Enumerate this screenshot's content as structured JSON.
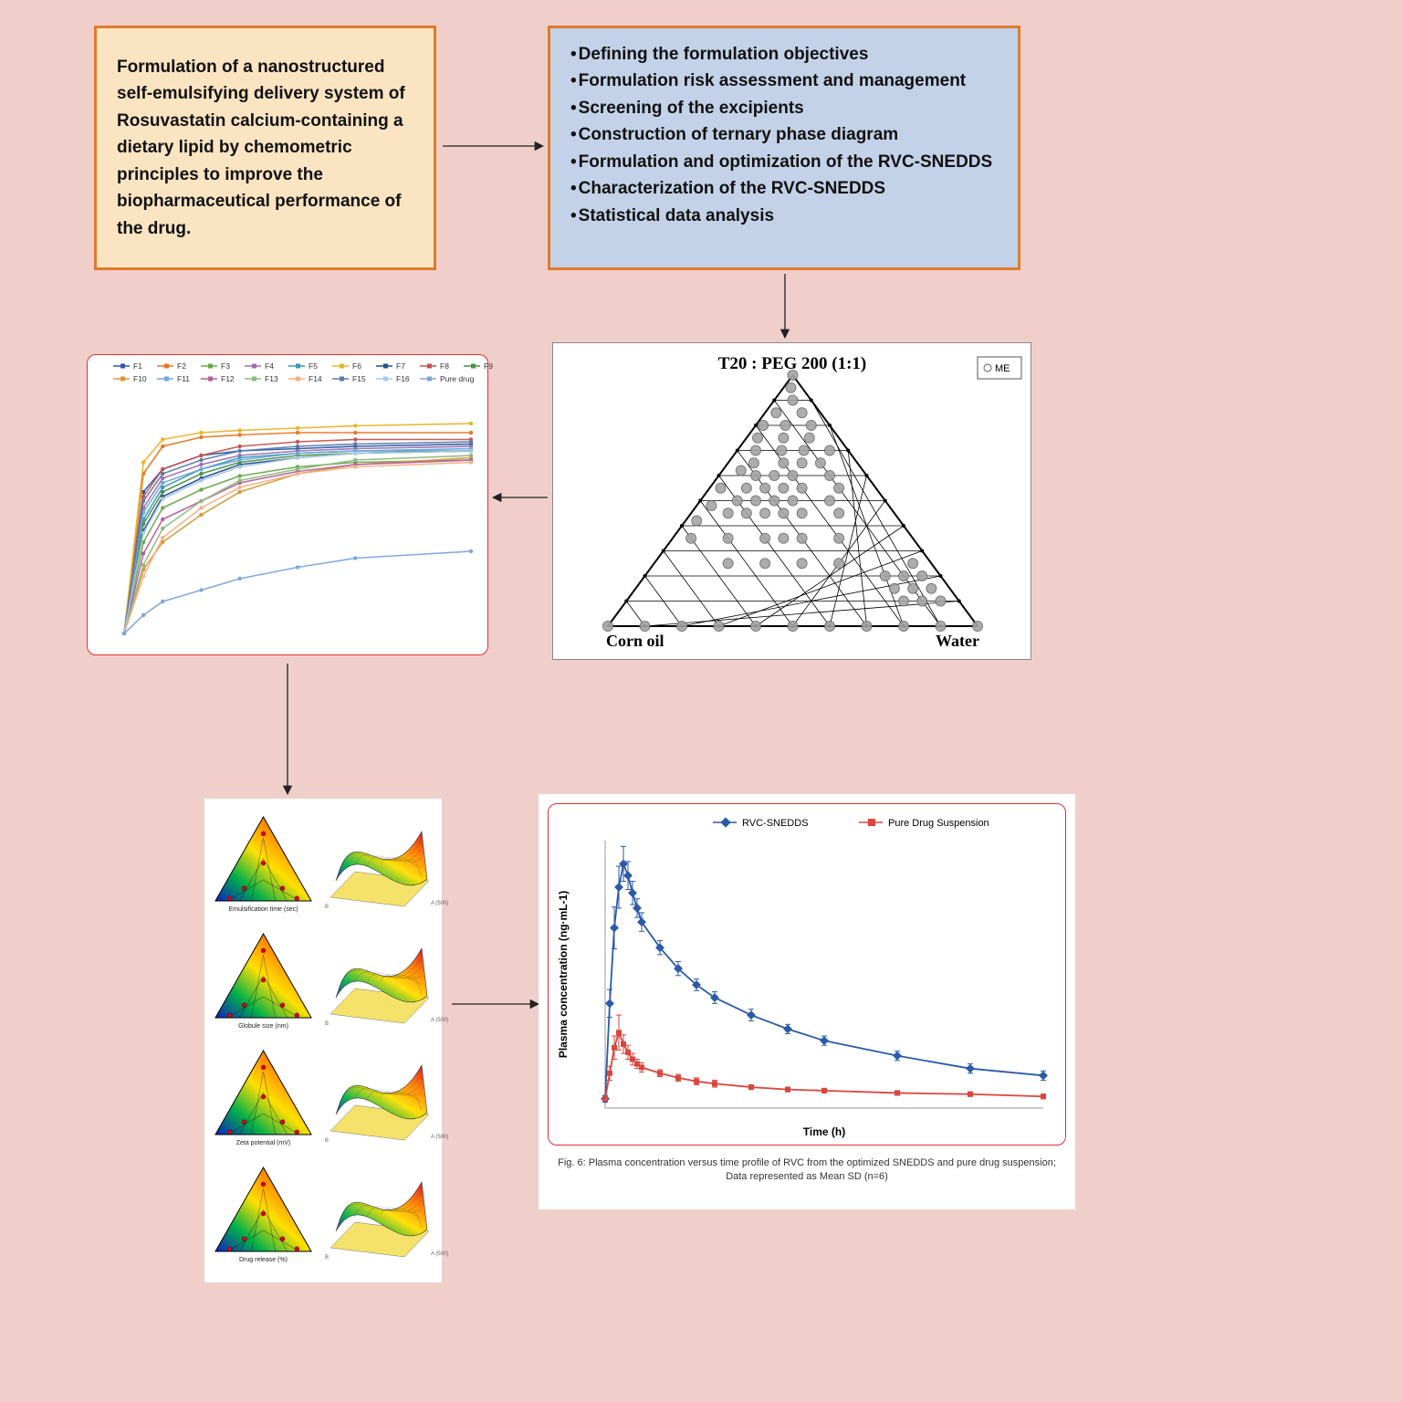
{
  "background": "#f0cfca",
  "box1": {
    "bg": "#fbe4c1",
    "border": "#e07a2a",
    "text": "Formulation of a nanostructured self-emulsifying delivery system of Rosuvastatin calcium-containing a dietary lipid by chemometric principles to improve the biopharmaceutical performance of the drug."
  },
  "box2": {
    "bg": "#c3d2e8",
    "border": "#e07a2a",
    "items": [
      "Defining the formulation objectives",
      "Formulation risk assessment and management",
      "Screening of the excipients",
      "Construction of ternary phase diagram",
      "Formulation and optimization of the RVC-SNEDDS",
      "Characterization of the RVC-SNEDDS",
      "Statistical data analysis"
    ]
  },
  "arrows": {
    "color": "#222222",
    "stroke": 1.3
  },
  "release": {
    "border": "#e03030",
    "legend": [
      {
        "name": "F1",
        "color": "#2b5aa8"
      },
      {
        "name": "F2",
        "color": "#e97424"
      },
      {
        "name": "F3",
        "color": "#6aa84f"
      },
      {
        "name": "F4",
        "color": "#9e6fb0"
      },
      {
        "name": "F5",
        "color": "#3b9ab2"
      },
      {
        "name": "F6",
        "color": "#e7b528"
      },
      {
        "name": "F7",
        "color": "#274e8c"
      },
      {
        "name": "F8",
        "color": "#c85250"
      },
      {
        "name": "F9",
        "color": "#4a8f4a"
      },
      {
        "name": "F10",
        "color": "#d49a3a"
      },
      {
        "name": "F11",
        "color": "#6fa8dc"
      },
      {
        "name": "F12",
        "color": "#b45f9e"
      },
      {
        "name": "F13",
        "color": "#8fb97e"
      },
      {
        "name": "F14",
        "color": "#f4b183"
      },
      {
        "name": "F15",
        "color": "#5b7ca8"
      },
      {
        "name": "F16",
        "color": "#a5c9e1"
      },
      {
        "name": "Pure drug",
        "color": "#7da6d9"
      }
    ],
    "series_y": {
      "F1": [
        0,
        62,
        72,
        78,
        80,
        81,
        82,
        83
      ],
      "F2": [
        0,
        70,
        82,
        86,
        87,
        88,
        88,
        88
      ],
      "F3": [
        0,
        40,
        55,
        63,
        69,
        73,
        75,
        76
      ],
      "F4": [
        0,
        55,
        68,
        74,
        78,
        80,
        81,
        82
      ],
      "F5": [
        0,
        50,
        64,
        72,
        77,
        79,
        80,
        80
      ],
      "F6": [
        0,
        75,
        85,
        88,
        89,
        90,
        91,
        92
      ],
      "F7": [
        0,
        45,
        60,
        68,
        74,
        77,
        79,
        80
      ],
      "F8": [
        0,
        60,
        72,
        78,
        82,
        84,
        85,
        85
      ],
      "F9": [
        0,
        48,
        62,
        70,
        75,
        78,
        79,
        80
      ],
      "F10": [
        0,
        28,
        40,
        52,
        62,
        70,
        74,
        77
      ],
      "F11": [
        0,
        53,
        66,
        72,
        76,
        79,
        80,
        81
      ],
      "F12": [
        0,
        35,
        50,
        58,
        66,
        71,
        74,
        76
      ],
      "F13": [
        0,
        30,
        46,
        58,
        67,
        72,
        76,
        78
      ],
      "F14": [
        0,
        25,
        42,
        55,
        64,
        70,
        73,
        75
      ],
      "F15": [
        0,
        58,
        70,
        76,
        80,
        82,
        83,
        84
      ],
      "F16": [
        0,
        44,
        59,
        67,
        73,
        77,
        79,
        80
      ],
      "Pure drug": [
        0,
        8,
        14,
        19,
        24,
        29,
        33,
        36
      ]
    },
    "x": [
      0,
      5,
      10,
      20,
      30,
      45,
      60,
      90
    ],
    "xmax": 90,
    "ymax": 100
  },
  "ternary": {
    "title": "T20 : PEG 200 (1:1)",
    "title_fontsize": 19,
    "legend_label": "ME",
    "corners": {
      "left": "Corn oil",
      "right": "Water"
    },
    "rows": 10,
    "dot_color": "#a5a5a5",
    "dot_stroke": "#6e6e6e",
    "grid_color": "#000000",
    "points_abc": [
      [
        0,
        0,
        100
      ],
      [
        10,
        0,
        90
      ],
      [
        20,
        0,
        80
      ],
      [
        30,
        0,
        70
      ],
      [
        40,
        0,
        60
      ],
      [
        50,
        0,
        50
      ],
      [
        60,
        0,
        40
      ],
      [
        70,
        0,
        30
      ],
      [
        80,
        0,
        20
      ],
      [
        90,
        0,
        10
      ],
      [
        100,
        0,
        0
      ],
      [
        0,
        100,
        0
      ],
      [
        5,
        10,
        85
      ],
      [
        10,
        10,
        80
      ],
      [
        15,
        10,
        75
      ],
      [
        5,
        15,
        80
      ],
      [
        10,
        15,
        75
      ],
      [
        15,
        15,
        70
      ],
      [
        5,
        20,
        75
      ],
      [
        10,
        20,
        70
      ],
      [
        15,
        20,
        65
      ],
      [
        5,
        25,
        70
      ],
      [
        25,
        25,
        50
      ],
      [
        35,
        25,
        40
      ],
      [
        45,
        25,
        30
      ],
      [
        55,
        25,
        20
      ],
      [
        20,
        35,
        45
      ],
      [
        30,
        35,
        35
      ],
      [
        35,
        35,
        30
      ],
      [
        40,
        35,
        25
      ],
      [
        50,
        35,
        15
      ],
      [
        60,
        35,
        5
      ],
      [
        15,
        45,
        40
      ],
      [
        25,
        45,
        30
      ],
      [
        30,
        45,
        25
      ],
      [
        35,
        45,
        20
      ],
      [
        40,
        45,
        15
      ],
      [
        45,
        45,
        10
      ],
      [
        55,
        42,
        3
      ],
      [
        15,
        50,
        35
      ],
      [
        25,
        50,
        25
      ],
      [
        30,
        50,
        20
      ],
      [
        35,
        50,
        15
      ],
      [
        40,
        50,
        10
      ],
      [
        48,
        48,
        4
      ],
      [
        10,
        55,
        35
      ],
      [
        20,
        55,
        25
      ],
      [
        25,
        55,
        20
      ],
      [
        30,
        55,
        15
      ],
      [
        35,
        55,
        10
      ],
      [
        42,
        55,
        3
      ],
      [
        10,
        60,
        30
      ],
      [
        20,
        60,
        20
      ],
      [
        25,
        60,
        15
      ],
      [
        30,
        60,
        10
      ],
      [
        10,
        65,
        25
      ],
      [
        15,
        65,
        20
      ],
      [
        20,
        65,
        15
      ],
      [
        28,
        65,
        7
      ],
      [
        33,
        62,
        5
      ],
      [
        5,
        70,
        25
      ],
      [
        12,
        70,
        18
      ],
      [
        18,
        70,
        12
      ],
      [
        25,
        70,
        5
      ],
      [
        8,
        75,
        17
      ],
      [
        15,
        75,
        10
      ],
      [
        22,
        75,
        3
      ],
      [
        5,
        80,
        15
      ],
      [
        12,
        80,
        8
      ],
      [
        18,
        80,
        2
      ],
      [
        5,
        85,
        10
      ],
      [
        12,
        85,
        3
      ],
      [
        5,
        90,
        5
      ],
      [
        3,
        95,
        2
      ]
    ]
  },
  "rsm": {
    "labels": [
      "Emulsification time (sec)",
      "Globule size (nm)",
      "Zeta potential (mV)",
      "Drug release (%)"
    ],
    "label_fontsize": 7
  },
  "plasma": {
    "legend": [
      {
        "name": "RVC-SNEDDS",
        "color": "#2b5aa8",
        "marker": "diamond"
      },
      {
        "name": "Pure Drug Suspension",
        "color": "#d9463d",
        "marker": "square"
      }
    ],
    "ylabel": "Plasma concentration (ng·mL-1)",
    "xlabel": "Time (h)",
    "caption": "Fig. 6: Plasma concentration versus time profile of RVC from the optimized SNEDDS and pure drug suspension; Data represented as Mean SD (n=6)",
    "x": [
      0,
      0.25,
      0.5,
      0.75,
      1,
      1.25,
      1.5,
      1.75,
      2,
      3,
      4,
      5,
      6,
      8,
      10,
      12,
      16,
      20,
      24
    ],
    "snedds": [
      8,
      90,
      155,
      190,
      210,
      200,
      185,
      172,
      160,
      138,
      120,
      106,
      95,
      80,
      68,
      58,
      45,
      34,
      28
    ],
    "pure": [
      8,
      30,
      52,
      65,
      55,
      48,
      42,
      38,
      35,
      30,
      26,
      23,
      21,
      18,
      16,
      15,
      13,
      12,
      10
    ],
    "err_snedds": [
      3,
      12,
      18,
      18,
      15,
      12,
      10,
      8,
      8,
      6,
      6,
      5,
      5,
      5,
      4,
      4,
      4,
      4,
      4
    ],
    "err_pure": [
      2,
      6,
      10,
      15,
      8,
      6,
      5,
      4,
      4,
      3,
      3,
      3,
      3,
      2,
      2,
      2,
      2,
      2,
      2
    ],
    "xmax": 24,
    "ymax": 230
  }
}
